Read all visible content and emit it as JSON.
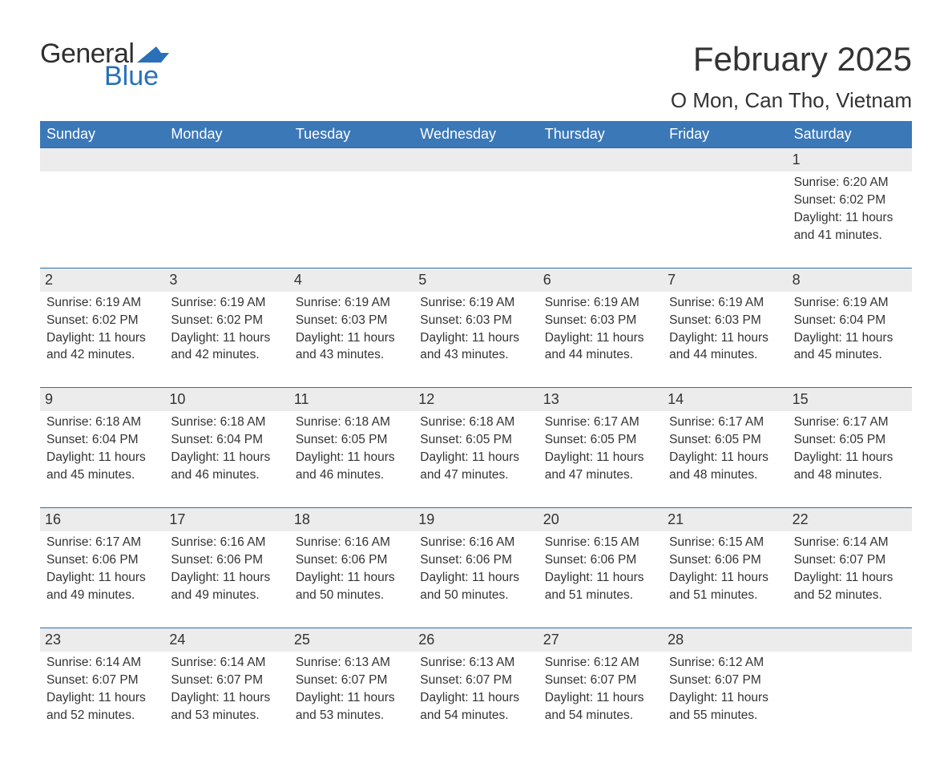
{
  "logo": {
    "general": "General",
    "blue": "Blue"
  },
  "title": "February 2025",
  "location": "O Mon, Can Tho, Vietnam",
  "colors": {
    "header_bg": "#3b78b8",
    "header_text": "#ffffff",
    "accent_line": "#2970b8",
    "daynum_bg": "#ececec",
    "body_text": "#333333",
    "logo_dark": "#2f2f2f",
    "logo_blue": "#2970b8",
    "page_bg": "#ffffff"
  },
  "typography": {
    "title_fontsize": 42,
    "location_fontsize": 26,
    "weekday_fontsize": 18,
    "daynum_fontsize": 18,
    "body_fontsize": 15.5,
    "font_family": "Arial"
  },
  "weekdays": [
    "Sunday",
    "Monday",
    "Tuesday",
    "Wednesday",
    "Thursday",
    "Friday",
    "Saturday"
  ],
  "weeks": [
    [
      {
        "day": null
      },
      {
        "day": null
      },
      {
        "day": null
      },
      {
        "day": null
      },
      {
        "day": null
      },
      {
        "day": null
      },
      {
        "day": 1,
        "sunrise": "Sunrise: 6:20 AM",
        "sunset": "Sunset: 6:02 PM",
        "daylight1": "Daylight: 11 hours",
        "daylight2": "and 41 minutes."
      }
    ],
    [
      {
        "day": 2,
        "sunrise": "Sunrise: 6:19 AM",
        "sunset": "Sunset: 6:02 PM",
        "daylight1": "Daylight: 11 hours",
        "daylight2": "and 42 minutes."
      },
      {
        "day": 3,
        "sunrise": "Sunrise: 6:19 AM",
        "sunset": "Sunset: 6:02 PM",
        "daylight1": "Daylight: 11 hours",
        "daylight2": "and 42 minutes."
      },
      {
        "day": 4,
        "sunrise": "Sunrise: 6:19 AM",
        "sunset": "Sunset: 6:03 PM",
        "daylight1": "Daylight: 11 hours",
        "daylight2": "and 43 minutes."
      },
      {
        "day": 5,
        "sunrise": "Sunrise: 6:19 AM",
        "sunset": "Sunset: 6:03 PM",
        "daylight1": "Daylight: 11 hours",
        "daylight2": "and 43 minutes."
      },
      {
        "day": 6,
        "sunrise": "Sunrise: 6:19 AM",
        "sunset": "Sunset: 6:03 PM",
        "daylight1": "Daylight: 11 hours",
        "daylight2": "and 44 minutes."
      },
      {
        "day": 7,
        "sunrise": "Sunrise: 6:19 AM",
        "sunset": "Sunset: 6:03 PM",
        "daylight1": "Daylight: 11 hours",
        "daylight2": "and 44 minutes."
      },
      {
        "day": 8,
        "sunrise": "Sunrise: 6:19 AM",
        "sunset": "Sunset: 6:04 PM",
        "daylight1": "Daylight: 11 hours",
        "daylight2": "and 45 minutes."
      }
    ],
    [
      {
        "day": 9,
        "sunrise": "Sunrise: 6:18 AM",
        "sunset": "Sunset: 6:04 PM",
        "daylight1": "Daylight: 11 hours",
        "daylight2": "and 45 minutes."
      },
      {
        "day": 10,
        "sunrise": "Sunrise: 6:18 AM",
        "sunset": "Sunset: 6:04 PM",
        "daylight1": "Daylight: 11 hours",
        "daylight2": "and 46 minutes."
      },
      {
        "day": 11,
        "sunrise": "Sunrise: 6:18 AM",
        "sunset": "Sunset: 6:05 PM",
        "daylight1": "Daylight: 11 hours",
        "daylight2": "and 46 minutes."
      },
      {
        "day": 12,
        "sunrise": "Sunrise: 6:18 AM",
        "sunset": "Sunset: 6:05 PM",
        "daylight1": "Daylight: 11 hours",
        "daylight2": "and 47 minutes."
      },
      {
        "day": 13,
        "sunrise": "Sunrise: 6:17 AM",
        "sunset": "Sunset: 6:05 PM",
        "daylight1": "Daylight: 11 hours",
        "daylight2": "and 47 minutes."
      },
      {
        "day": 14,
        "sunrise": "Sunrise: 6:17 AM",
        "sunset": "Sunset: 6:05 PM",
        "daylight1": "Daylight: 11 hours",
        "daylight2": "and 48 minutes."
      },
      {
        "day": 15,
        "sunrise": "Sunrise: 6:17 AM",
        "sunset": "Sunset: 6:05 PM",
        "daylight1": "Daylight: 11 hours",
        "daylight2": "and 48 minutes."
      }
    ],
    [
      {
        "day": 16,
        "sunrise": "Sunrise: 6:17 AM",
        "sunset": "Sunset: 6:06 PM",
        "daylight1": "Daylight: 11 hours",
        "daylight2": "and 49 minutes."
      },
      {
        "day": 17,
        "sunrise": "Sunrise: 6:16 AM",
        "sunset": "Sunset: 6:06 PM",
        "daylight1": "Daylight: 11 hours",
        "daylight2": "and 49 minutes."
      },
      {
        "day": 18,
        "sunrise": "Sunrise: 6:16 AM",
        "sunset": "Sunset: 6:06 PM",
        "daylight1": "Daylight: 11 hours",
        "daylight2": "and 50 minutes."
      },
      {
        "day": 19,
        "sunrise": "Sunrise: 6:16 AM",
        "sunset": "Sunset: 6:06 PM",
        "daylight1": "Daylight: 11 hours",
        "daylight2": "and 50 minutes."
      },
      {
        "day": 20,
        "sunrise": "Sunrise: 6:15 AM",
        "sunset": "Sunset: 6:06 PM",
        "daylight1": "Daylight: 11 hours",
        "daylight2": "and 51 minutes."
      },
      {
        "day": 21,
        "sunrise": "Sunrise: 6:15 AM",
        "sunset": "Sunset: 6:06 PM",
        "daylight1": "Daylight: 11 hours",
        "daylight2": "and 51 minutes."
      },
      {
        "day": 22,
        "sunrise": "Sunrise: 6:14 AM",
        "sunset": "Sunset: 6:07 PM",
        "daylight1": "Daylight: 11 hours",
        "daylight2": "and 52 minutes."
      }
    ],
    [
      {
        "day": 23,
        "sunrise": "Sunrise: 6:14 AM",
        "sunset": "Sunset: 6:07 PM",
        "daylight1": "Daylight: 11 hours",
        "daylight2": "and 52 minutes."
      },
      {
        "day": 24,
        "sunrise": "Sunrise: 6:14 AM",
        "sunset": "Sunset: 6:07 PM",
        "daylight1": "Daylight: 11 hours",
        "daylight2": "and 53 minutes."
      },
      {
        "day": 25,
        "sunrise": "Sunrise: 6:13 AM",
        "sunset": "Sunset: 6:07 PM",
        "daylight1": "Daylight: 11 hours",
        "daylight2": "and 53 minutes."
      },
      {
        "day": 26,
        "sunrise": "Sunrise: 6:13 AM",
        "sunset": "Sunset: 6:07 PM",
        "daylight1": "Daylight: 11 hours",
        "daylight2": "and 54 minutes."
      },
      {
        "day": 27,
        "sunrise": "Sunrise: 6:12 AM",
        "sunset": "Sunset: 6:07 PM",
        "daylight1": "Daylight: 11 hours",
        "daylight2": "and 54 minutes."
      },
      {
        "day": 28,
        "sunrise": "Sunrise: 6:12 AM",
        "sunset": "Sunset: 6:07 PM",
        "daylight1": "Daylight: 11 hours",
        "daylight2": "and 55 minutes."
      },
      {
        "day": null
      }
    ]
  ]
}
